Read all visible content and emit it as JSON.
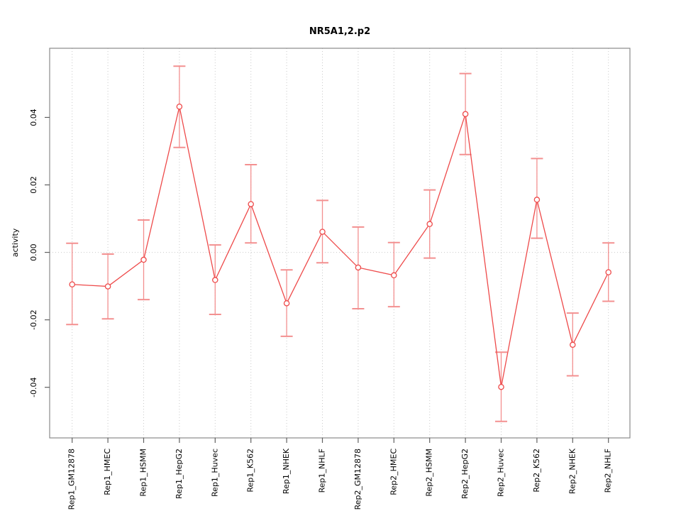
{
  "chart_data": {
    "type": "line",
    "title": "NR5A1,2.p2",
    "xlabel": "",
    "ylabel": "activity",
    "categories": [
      "Rep1_GM12878",
      "Rep1_HMEC",
      "Rep1_HSMM",
      "Rep1_HepG2",
      "Rep1_Huvec",
      "Rep1_K562",
      "Rep1_NHEK",
      "Rep1_NHLF",
      "Rep2_GM12878",
      "Rep2_HMEC",
      "Rep2_HSMM",
      "Rep2_HepG2",
      "Rep2_Huvec",
      "Rep2_K562",
      "Rep2_NHEK",
      "Rep2_NHLF"
    ],
    "series": [
      {
        "name": "activity",
        "values": [
          -0.0095,
          -0.0101,
          -0.0022,
          0.0432,
          -0.0082,
          0.0143,
          -0.0151,
          0.0061,
          -0.0045,
          -0.0068,
          0.0084,
          0.041,
          -0.0399,
          0.0156,
          -0.0274,
          -0.0059
        ],
        "ci_upper": [
          0.0027,
          -0.0005,
          0.0096,
          0.0552,
          0.0022,
          0.026,
          -0.0052,
          0.0154,
          0.0075,
          0.0029,
          0.0185,
          0.053,
          -0.0296,
          0.0278,
          -0.018,
          0.0028
        ],
        "ci_lower": [
          -0.0214,
          -0.0197,
          -0.014,
          0.0311,
          -0.0184,
          0.0028,
          -0.0249,
          -0.0031,
          -0.0167,
          -0.0161,
          -0.0017,
          0.029,
          -0.0501,
          0.0042,
          -0.0366,
          -0.0145
        ]
      }
    ],
    "ytick_labels": [
      "-0.04",
      "-0.02",
      "0.00",
      "0.02",
      "0.04"
    ],
    "ytick_values": [
      -0.04,
      -0.02,
      0.0,
      0.02,
      0.04
    ],
    "ylim": [
      -0.055,
      0.0605
    ],
    "legend": "none",
    "marker": "open-circle",
    "error_bars": true,
    "grid": {
      "vertical_dotted_at_categories": true,
      "horizontal_dotted_at_zero": true
    },
    "colors": {
      "series": "#ee4a4a",
      "error_bar": "#f39090",
      "grid": "#c9c9c9",
      "box": "#8a8a8a",
      "tick": "#606060",
      "text": "#000000",
      "background": "#ffffff"
    }
  }
}
